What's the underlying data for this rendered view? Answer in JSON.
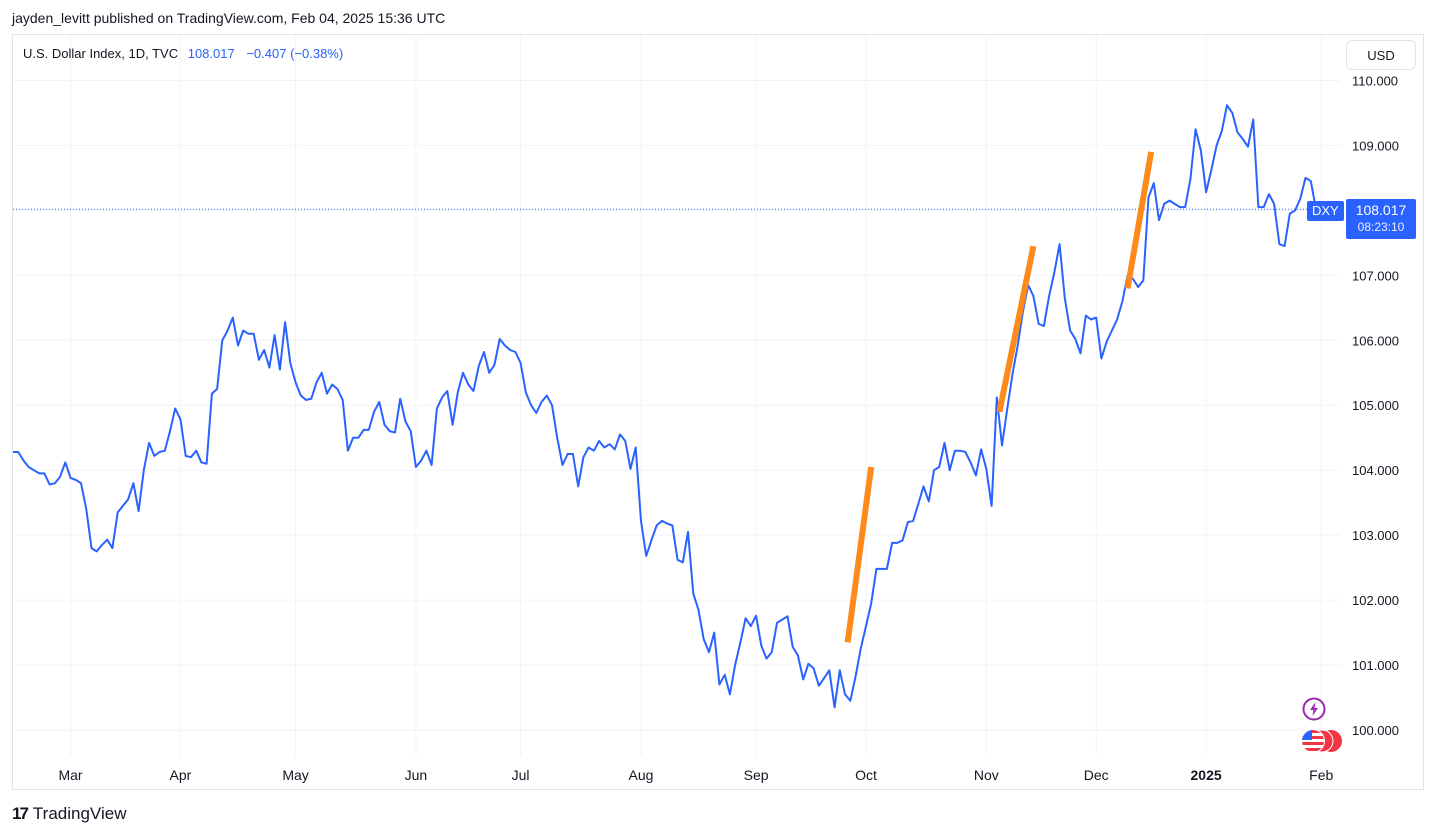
{
  "publisher_line": "jayden_levitt published on TradingView.com, Feb 04, 2025 15:36 UTC",
  "legend": {
    "symbol": "U.S. Dollar Index, 1D, TVC",
    "value": "108.017",
    "change": "−0.407 (−0.38%)"
  },
  "unit_button": "USD",
  "symbol_tag": "DXY",
  "last_price": {
    "value": "108.017",
    "countdown": "08:23:10"
  },
  "brand": "TradingView",
  "icons": [
    "bolt-icon",
    "us-flag-icon",
    "tradingview-logo-icon"
  ],
  "colors": {
    "line": "#2962ff",
    "annotation": "#ff8a1c",
    "grid": "#f0f3fa"
  },
  "chart_data": {
    "type": "line",
    "series": [
      {
        "name": "",
        "values": [
          104.28,
          104.28,
          104.15,
          104.05,
          104.0,
          103.95,
          103.95,
          103.78,
          103.8,
          103.9,
          104.12,
          103.88,
          103.85,
          103.8,
          103.4,
          102.8,
          102.75,
          102.85,
          102.93,
          102.8,
          103.35,
          103.45,
          103.55,
          103.8,
          103.37,
          104.0,
          104.42,
          104.22,
          104.28,
          104.3,
          104.6,
          104.95,
          104.78,
          104.22,
          104.2,
          104.3,
          104.12,
          104.1,
          105.18,
          105.25,
          106.0,
          106.15,
          106.35,
          105.92,
          106.15,
          106.1,
          106.1,
          105.7,
          105.85,
          105.58,
          106.08,
          105.55,
          106.28,
          105.65,
          105.35,
          105.15,
          105.08,
          105.1,
          105.35,
          105.5,
          105.18,
          105.32,
          105.25,
          105.08,
          104.3,
          104.5,
          104.5,
          104.62,
          104.62,
          104.9,
          105.05,
          104.7,
          104.6,
          104.58,
          105.1,
          104.75,
          104.6,
          104.05,
          104.15,
          104.3,
          104.08,
          104.95,
          105.12,
          105.22,
          104.7,
          105.2,
          105.5,
          105.32,
          105.22,
          105.6,
          105.82,
          105.5,
          105.62,
          106.02,
          105.92,
          105.85,
          105.82,
          105.65,
          105.2,
          105.0,
          104.88,
          105.05,
          105.15,
          105.0,
          104.5,
          104.08,
          104.25,
          104.25,
          103.75,
          104.2,
          104.35,
          104.3,
          104.45,
          104.35,
          104.4,
          104.32,
          104.55,
          104.45,
          104.02,
          104.35,
          103.22,
          102.68,
          102.92,
          103.15,
          103.22,
          103.18,
          103.15,
          102.62,
          102.58,
          103.05,
          102.1,
          101.85,
          101.4,
          101.2,
          101.5,
          100.7,
          100.85,
          100.55,
          101.0,
          101.35,
          101.72,
          101.6,
          101.76,
          101.3,
          101.1,
          101.2,
          101.65,
          101.7,
          101.75,
          101.28,
          101.15,
          100.78,
          101.02,
          100.95,
          100.68,
          100.8,
          100.92,
          100.35,
          100.92,
          100.55,
          100.45,
          100.82,
          101.25,
          101.6,
          101.95,
          102.48,
          102.48,
          102.48,
          102.88,
          102.88,
          102.92,
          103.2,
          103.22,
          103.48,
          103.75,
          103.52,
          104.0,
          104.05,
          104.42,
          104.0,
          104.3,
          104.3,
          104.28,
          104.12,
          103.92,
          104.32,
          104.02,
          103.45,
          105.12,
          104.38,
          104.95,
          105.48,
          105.92,
          106.45,
          106.85,
          106.68,
          106.25,
          106.22,
          106.68,
          107.05,
          107.48,
          106.65,
          106.15,
          106.02,
          105.8,
          106.38,
          106.32,
          106.35,
          105.72,
          105.98,
          106.15,
          106.32,
          106.6,
          107.0,
          106.95,
          106.82,
          106.92,
          108.2,
          108.42,
          107.85,
          108.1,
          108.15,
          108.1,
          108.05,
          108.05,
          108.48,
          109.25,
          108.92,
          108.28,
          108.62,
          109.0,
          109.22,
          109.62,
          109.5,
          109.2,
          109.1,
          108.98,
          109.4,
          108.05,
          108.05,
          108.25,
          108.1,
          107.48,
          107.45,
          107.95,
          108.0,
          108.18,
          108.5,
          108.45,
          108.02
        ]
      }
    ],
    "annotations": [
      {
        "x0": 159.5,
        "y0": 101.35,
        "x1": 164.0,
        "y1": 104.05
      },
      {
        "x0": 188.5,
        "y0": 104.9,
        "x1": 195.0,
        "y1": 107.45
      },
      {
        "x0": 213.0,
        "y0": 106.8,
        "x1": 217.5,
        "y1": 108.9
      }
    ],
    "x_ticks": [
      {
        "label": "Mar",
        "index": 11,
        "bold": false
      },
      {
        "label": "Apr",
        "index": 32,
        "bold": false
      },
      {
        "label": "May",
        "index": 54,
        "bold": false
      },
      {
        "label": "Jun",
        "index": 77,
        "bold": false
      },
      {
        "label": "Jul",
        "index": 97,
        "bold": false
      },
      {
        "label": "Aug",
        "index": 120,
        "bold": false
      },
      {
        "label": "Sep",
        "index": 142,
        "bold": false
      },
      {
        "label": "Oct",
        "index": 163,
        "bold": false
      },
      {
        "label": "Nov",
        "index": 186,
        "bold": false
      },
      {
        "label": "Dec",
        "index": 207,
        "bold": false
      },
      {
        "label": "2025",
        "index": 228,
        "bold": true
      },
      {
        "label": "Feb",
        "index": 250,
        "bold": false
      }
    ],
    "y_ticks": [
      "100.000",
      "101.000",
      "102.000",
      "103.000",
      "104.000",
      "105.000",
      "106.000",
      "107.000",
      "108.000",
      "109.000",
      "110.000"
    ],
    "ylim": [
      99.6,
      110.7
    ],
    "last_value": 108.017,
    "grid": true
  }
}
